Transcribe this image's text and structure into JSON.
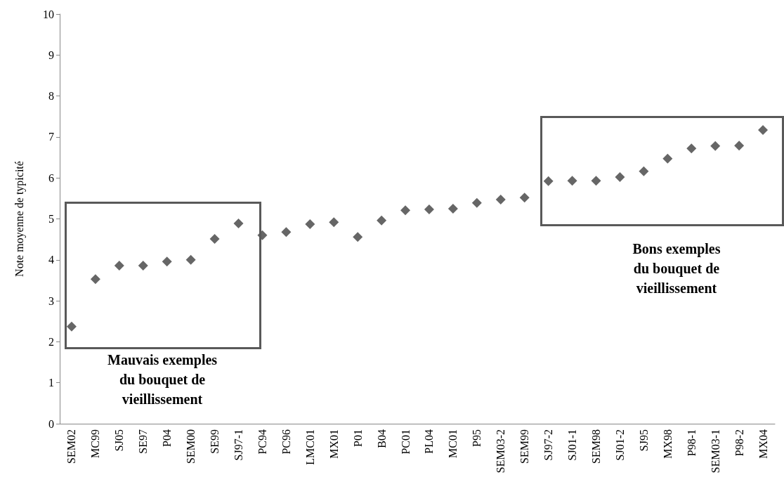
{
  "chart_data": {
    "type": "scatter",
    "ylabel": "Note moyenne de typicité",
    "categories": [
      "SEM02",
      "MC99",
      "SJ05",
      "SE97",
      "P04",
      "SEM00",
      "SE99",
      "SJ97-1",
      "PC94",
      "PC96",
      "LMC01",
      "MX01",
      "P01",
      "B04",
      "PC01",
      "PL04",
      "MC01",
      "P95",
      "SEM03-2",
      "SEM99",
      "SJ97-2",
      "SJ01-1",
      "SEM98",
      "SJ01-2",
      "SJ95",
      "MX98",
      "P98-1",
      "SEM03-1",
      "P98-2",
      "MX04"
    ],
    "series": [
      {
        "color": "#404040",
        "values": [
          2.37,
          3.53,
          3.86,
          3.86,
          3.96,
          4.0,
          4.51,
          4.89,
          4.6,
          4.68,
          4.87,
          4.92,
          4.56,
          4.96,
          5.21,
          5.23,
          5.25,
          5.39,
          5.47,
          5.52,
          5.92,
          5.93,
          5.93,
          6.02,
          6.16,
          6.47,
          6.72,
          6.78,
          6.79,
          7.17
        ]
      }
    ],
    "ylim": [
      0,
      10
    ],
    "yticks": [
      0,
      1,
      2,
      3,
      4,
      5,
      6,
      7,
      8,
      9,
      10
    ],
    "marker": "diamond",
    "grid": false,
    "annotations": [
      "Mauvais exemples\ndu bouquet de\nvieillissement",
      "Bons exemples\ndu bouquet de\nvieillissement"
    ]
  }
}
